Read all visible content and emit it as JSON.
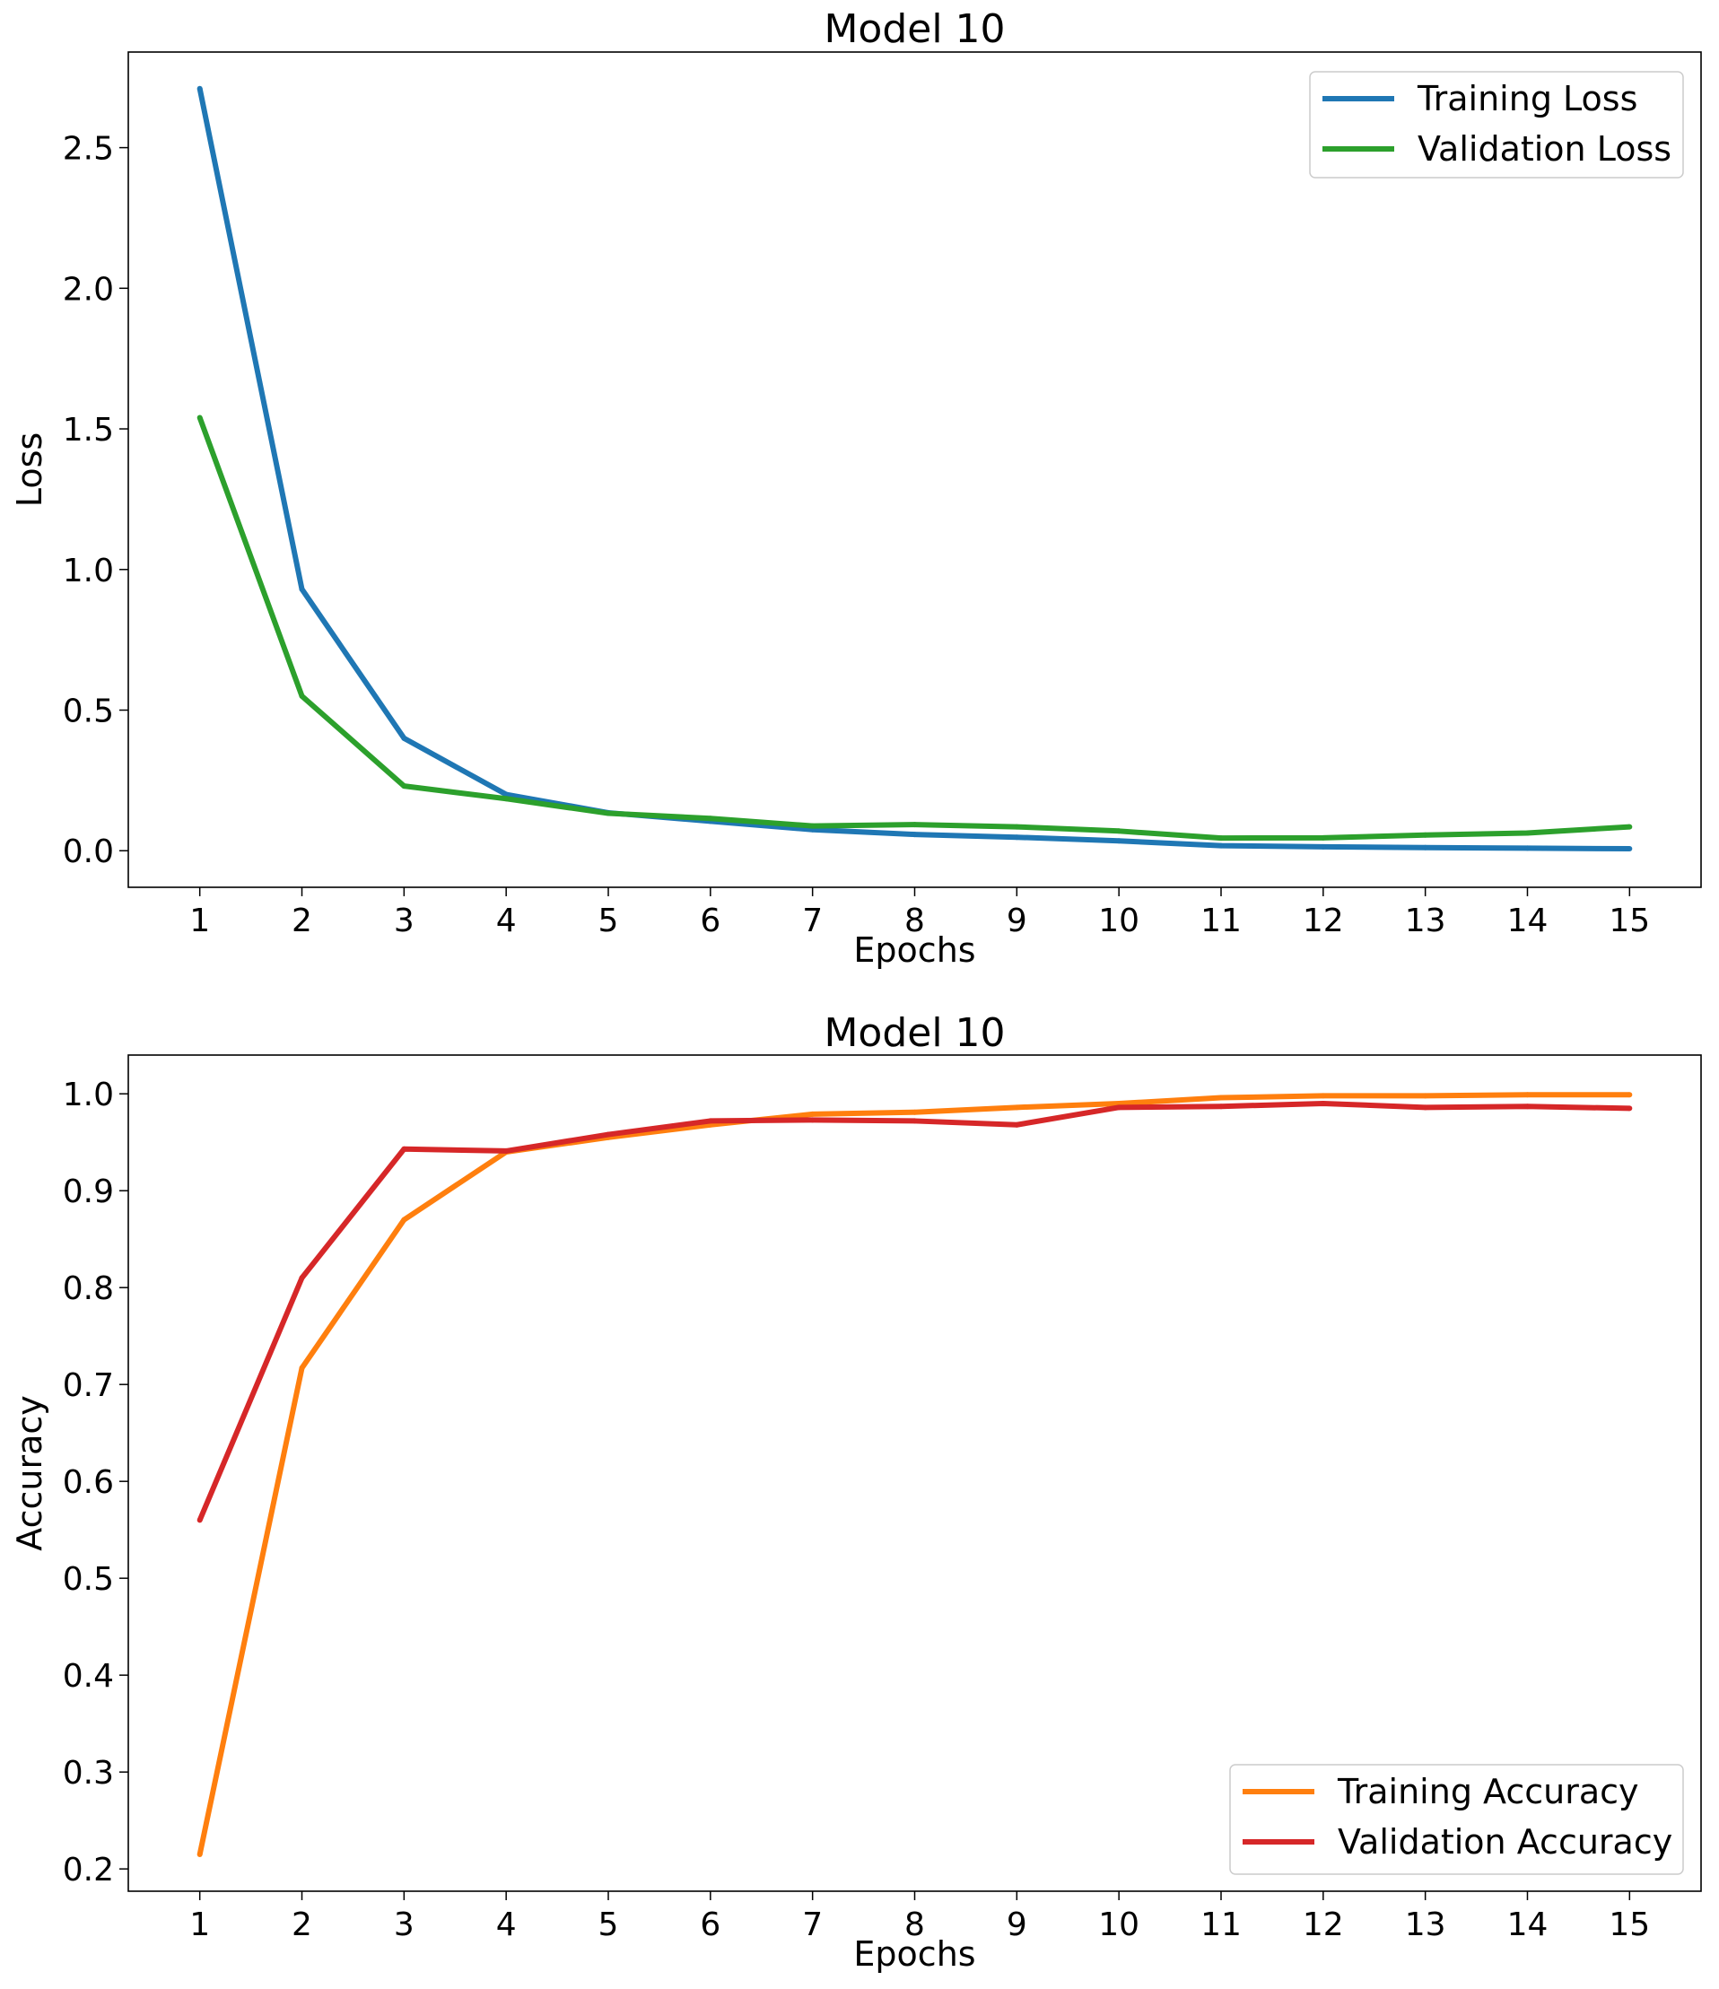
{
  "chart_data": [
    {
      "type": "line",
      "title": "Model 10",
      "xlabel": "Epochs",
      "ylabel": "Loss",
      "x": [
        1,
        2,
        3,
        4,
        5,
        6,
        7,
        8,
        9,
        10,
        11,
        12,
        13,
        14,
        15
      ],
      "xticks": [
        "1",
        "2",
        "3",
        "4",
        "5",
        "6",
        "7",
        "8",
        "9",
        "10",
        "11",
        "12",
        "13",
        "14",
        "15"
      ],
      "xlim": [
        0.3,
        15.7
      ],
      "ylim": [
        -0.13,
        2.84
      ],
      "yticks": [
        "0.0",
        "0.5",
        "1.0",
        "1.5",
        "2.0",
        "2.5"
      ],
      "ytick_values": [
        0.0,
        0.5,
        1.0,
        1.5,
        2.0,
        2.5
      ],
      "grid": false,
      "legend_position": "top-right",
      "series": [
        {
          "name": "Training Loss",
          "color": "#1f77b4",
          "values": [
            2.71,
            0.93,
            0.4,
            0.2,
            0.135,
            0.105,
            0.075,
            0.058,
            0.048,
            0.035,
            0.018,
            0.014,
            0.011,
            0.009,
            0.007
          ]
        },
        {
          "name": "Validation Loss",
          "color": "#2ca02c",
          "values": [
            1.54,
            0.55,
            0.23,
            0.185,
            0.133,
            0.115,
            0.088,
            0.093,
            0.085,
            0.07,
            0.045,
            0.046,
            0.056,
            0.063,
            0.085
          ]
        }
      ]
    },
    {
      "type": "line",
      "title": "Model 10",
      "xlabel": "Epochs",
      "ylabel": "Accuracy",
      "x": [
        1,
        2,
        3,
        4,
        5,
        6,
        7,
        8,
        9,
        10,
        11,
        12,
        13,
        14,
        15
      ],
      "xticks": [
        "1",
        "2",
        "3",
        "4",
        "5",
        "6",
        "7",
        "8",
        "9",
        "10",
        "11",
        "12",
        "13",
        "14",
        "15"
      ],
      "xlim": [
        0.3,
        15.7
      ],
      "ylim": [
        0.177,
        1.04
      ],
      "yticks": [
        "0.2",
        "0.3",
        "0.4",
        "0.5",
        "0.6",
        "0.7",
        "0.8",
        "0.9",
        "1.0"
      ],
      "ytick_values": [
        0.2,
        0.3,
        0.4,
        0.5,
        0.6,
        0.7,
        0.8,
        0.9,
        1.0
      ],
      "grid": false,
      "legend_position": "bottom-right",
      "series": [
        {
          "name": "Training Accuracy",
          "color": "#ff7f0e",
          "values": [
            0.215,
            0.717,
            0.87,
            0.94,
            0.955,
            0.968,
            0.979,
            0.981,
            0.986,
            0.99,
            0.996,
            0.998,
            0.998,
            0.999,
            0.999
          ]
        },
        {
          "name": "Validation Accuracy",
          "color": "#d62728",
          "values": [
            0.56,
            0.81,
            0.943,
            0.941,
            0.958,
            0.972,
            0.973,
            0.972,
            0.968,
            0.986,
            0.987,
            0.99,
            0.986,
            0.987,
            0.985
          ]
        }
      ]
    }
  ]
}
